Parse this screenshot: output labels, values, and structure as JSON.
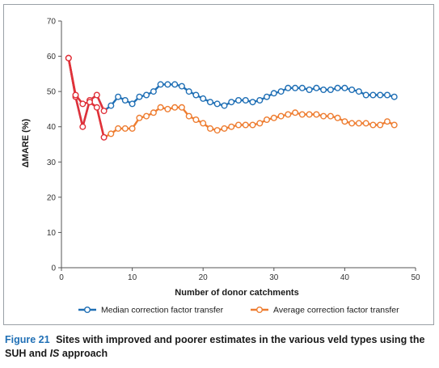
{
  "figure": {
    "label": "Figure 21",
    "caption_main": "Sites with improved and poorer estimates in the various veld types using the SUH and",
    "caption_italic": "IS",
    "caption_end": "approach"
  },
  "chart_data": {
    "type": "line",
    "title": "",
    "xlabel": "Number of donor catchments",
    "ylabel": "ΔMARE (%)",
    "xlim": [
      0,
      50
    ],
    "ylim": [
      0,
      70
    ],
    "x_ticks": [
      0,
      10,
      20,
      30,
      40,
      50
    ],
    "y_ticks": [
      0,
      10,
      20,
      30,
      40,
      50,
      60,
      70
    ],
    "grid": false,
    "legend_position": "bottom",
    "series": [
      {
        "name": "Median correction factor transfer",
        "color": "#1f6fb5",
        "x": [
          1,
          2,
          3,
          4,
          5,
          6,
          7,
          8,
          9,
          10,
          11,
          12,
          13,
          14,
          15,
          16,
          17,
          18,
          19,
          20,
          21,
          22,
          23,
          24,
          25,
          26,
          27,
          28,
          29,
          30,
          31,
          32,
          33,
          34,
          35,
          36,
          37,
          38,
          39,
          40,
          41,
          42,
          43,
          44,
          45,
          46,
          47
        ],
        "y": [
          59.5,
          48.5,
          40,
          47.5,
          49,
          44.5,
          46,
          48.5,
          47.5,
          46.5,
          48.5,
          49,
          50,
          52,
          52,
          52,
          51.5,
          50,
          49,
          48,
          47,
          46.5,
          46,
          47,
          47.5,
          47.5,
          47,
          47.5,
          48.5,
          49.5,
          50,
          51,
          51,
          51,
          50.5,
          51,
          50.5,
          50.5,
          51,
          51,
          50.5,
          50,
          49,
          49,
          49,
          49,
          48.5
        ]
      },
      {
        "name": "Average correction factor transfer",
        "color": "#ee7d31",
        "x": [
          1,
          2,
          3,
          4,
          5,
          6,
          7,
          8,
          9,
          10,
          11,
          12,
          13,
          14,
          15,
          16,
          17,
          18,
          19,
          20,
          21,
          22,
          23,
          24,
          25,
          26,
          27,
          28,
          29,
          30,
          31,
          32,
          33,
          34,
          35,
          36,
          37,
          38,
          39,
          40,
          41,
          42,
          43,
          44,
          45,
          46,
          47
        ],
        "y": [
          59.5,
          49,
          46.5,
          47,
          45.5,
          37,
          38,
          39.5,
          39.5,
          39.5,
          42.5,
          43,
          44,
          45.5,
          45,
          45.5,
          45.5,
          43,
          42,
          41,
          39.5,
          39,
          39.5,
          40,
          40.5,
          40.5,
          40.5,
          41,
          42,
          42.5,
          43,
          43.5,
          44,
          43.5,
          43.5,
          43.5,
          43,
          43,
          42.5,
          41.5,
          41,
          41,
          41,
          40.5,
          40.5,
          41.5,
          40.5
        ]
      }
    ],
    "highlight_segments": {
      "color": "#e0313a",
      "ranges": [
        [
          1,
          6
        ]
      ]
    }
  }
}
